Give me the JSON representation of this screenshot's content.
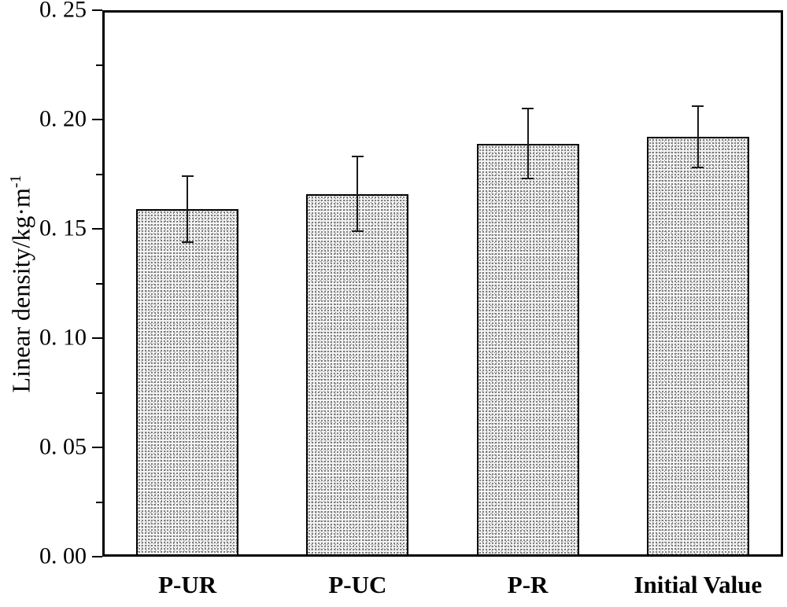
{
  "chart_data": {
    "type": "bar",
    "title": "",
    "categories": [
      "P-UR",
      "P-UC",
      "P-R",
      "Initial Value"
    ],
    "values": [
      0.159,
      0.166,
      0.189,
      0.192
    ],
    "errors": [
      0.015,
      0.017,
      0.016,
      0.014
    ],
    "ylabel_main": "Linear density/kg·m",
    "ylabel_superscript": "-1",
    "xlabel": "",
    "ylim": [
      0,
      0.25
    ],
    "ytick_values": [
      0.0,
      0.05,
      0.1,
      0.15,
      0.2,
      0.25
    ],
    "ytick_labels": [
      "0. 00",
      "0. 05",
      "0. 10",
      "0. 15",
      "0. 20",
      "0. 25"
    ],
    "yminor_values": [
      0.025,
      0.075,
      0.125,
      0.175,
      0.225
    ],
    "grid": false,
    "legend_position": "none",
    "bar_width_fraction": 0.6,
    "bar_fill": "stipple-pattern",
    "bar_fill_base_color": "#f4f4f4",
    "bar_border_color": "#000000",
    "error_bar_color": "#1a1a1a",
    "axis_color": "#000000",
    "background_color": "#ffffff"
  }
}
